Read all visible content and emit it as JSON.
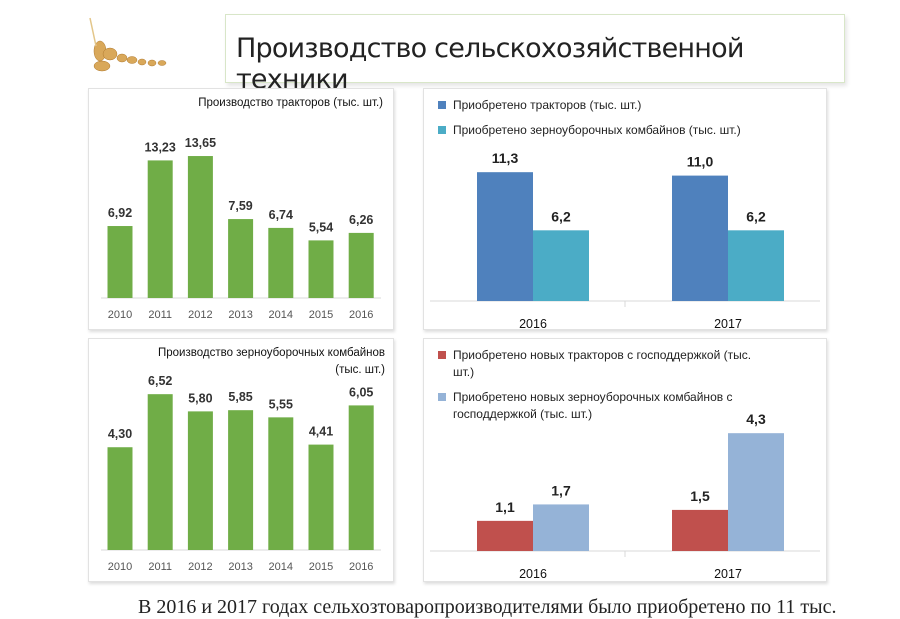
{
  "header": {
    "title": "Производство сельскохозяйственной техники"
  },
  "footer_text": "В 2016 и 2017 годах сельхозтоваропроизводителями было приобретено по 11 тыс.",
  "chart_data": [
    {
      "id": "c1",
      "type": "bar",
      "title": "Производство тракторов (тыс. шт.)",
      "categories": [
        "2010",
        "2011",
        "2012",
        "2013",
        "2014",
        "2015",
        "2016"
      ],
      "series": [
        {
          "name": "Производство тракторов",
          "color": "#70ad47",
          "values": [
            6.92,
            13.23,
            13.65,
            7.59,
            6.74,
            5.54,
            6.26
          ],
          "labels": [
            "6,92",
            "13,23",
            "13,65",
            "7,59",
            "6,74",
            "5,54",
            "6,26"
          ]
        }
      ]
    },
    {
      "id": "c2",
      "type": "bar",
      "legend": "top-left",
      "categories": [
        "2016",
        "2017"
      ],
      "series": [
        {
          "name": "Приобретено тракторов (тыс. шт.)",
          "color": "#4f81bd",
          "values": [
            11.3,
            11.0
          ],
          "labels": [
            "11,3",
            "11,0"
          ]
        },
        {
          "name": "Приобретено зерноуборочных комбайнов (тыс. шт.)",
          "color": "#4bacc6",
          "values": [
            6.2,
            6.2
          ],
          "labels": [
            "6,2",
            "6,2"
          ]
        }
      ]
    },
    {
      "id": "c3",
      "type": "bar",
      "title": "Производство зерноуборочных комбайнов",
      "title2": "(тыс. шт.)",
      "categories": [
        "2010",
        "2011",
        "2012",
        "2013",
        "2014",
        "2015",
        "2016"
      ],
      "series": [
        {
          "name": "Производство зерноуборочных комбайнов",
          "color": "#70ad47",
          "values": [
            4.3,
            6.52,
            5.8,
            5.85,
            5.55,
            4.41,
            6.05
          ],
          "labels": [
            "4,30",
            "6,52",
            "5,80",
            "5,85",
            "5,55",
            "4,41",
            "6,05"
          ]
        }
      ]
    },
    {
      "id": "c4",
      "type": "bar",
      "legend": "top-left",
      "categories": [
        "2016",
        "2017"
      ],
      "series": [
        {
          "name": "Приобретено новых тракторов с господдержкой (тыс. шт.)",
          "legend_lines": [
            "Приобретено новых тракторов с господдержкой (тыс.",
            "шт.)"
          ],
          "color": "#c0504d",
          "values": [
            1.1,
            1.5
          ],
          "labels": [
            "1,1",
            "1,5"
          ]
        },
        {
          "name": "Приобретено новых зерноуборочных комбайнов с господдержкой (тыс. шт.)",
          "legend_lines": [
            "Приобретено новых зерноуборочных комбайнов с",
            "господдержкой (тыс. шт.)"
          ],
          "color": "#95b3d7",
          "values": [
            1.7,
            4.3
          ],
          "labels": [
            "1,7",
            "4,3"
          ]
        }
      ]
    }
  ]
}
